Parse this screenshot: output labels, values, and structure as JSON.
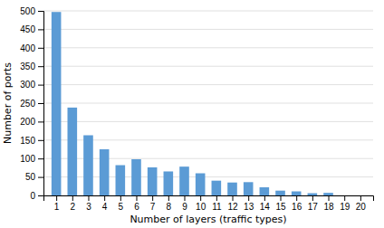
{
  "chart_data": {
    "type": "bar",
    "x": [
      1,
      2,
      3,
      4,
      5,
      6,
      7,
      8,
      9,
      10,
      11,
      12,
      13,
      14,
      15,
      16,
      17,
      18,
      19,
      20
    ],
    "values": [
      497,
      238,
      163,
      125,
      82,
      98,
      76,
      65,
      78,
      60,
      40,
      35,
      36,
      22,
      13,
      11,
      6,
      7,
      0,
      0
    ],
    "color": "#5b9bd5",
    "xlabel": "Number of layers (traffic types)",
    "ylabel": "Number of ports",
    "xlim": [
      0.2,
      20.8
    ],
    "xticks": [
      1,
      2,
      3,
      4,
      5,
      6,
      7,
      8,
      9,
      10,
      11,
      12,
      13,
      14,
      15,
      16,
      17,
      18,
      19,
      20
    ],
    "ylim": [
      0,
      500
    ],
    "yticks": [
      0,
      50,
      100,
      150,
      200,
      250,
      300,
      350,
      400,
      450,
      500
    ],
    "grid": true
  }
}
